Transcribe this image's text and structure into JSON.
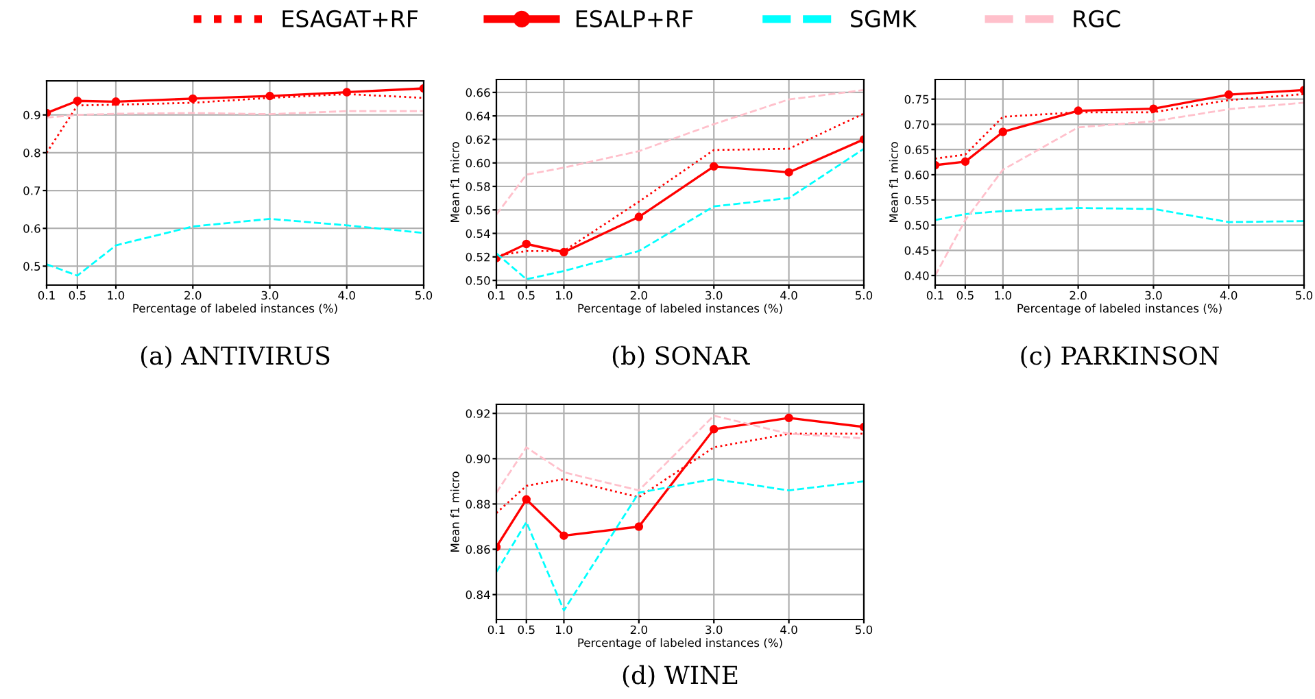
{
  "chart_data": [
    {
      "type": "line",
      "title": "(a) ANTIVIRUS",
      "xlabel": "Percentage of labeled instances (%)",
      "x": [
        0.1,
        0.5,
        1.0,
        2.0,
        3.0,
        4.0,
        5.0
      ],
      "xlim": [
        0.1,
        5.0
      ],
      "xticks": [
        {
          "value": 0.1,
          "label": "0.1"
        },
        {
          "value": 0.5,
          "label": "0.5"
        },
        {
          "value": 1.0,
          "label": "1.0"
        },
        {
          "value": 2.0,
          "label": "2.0"
        },
        {
          "value": 3.0,
          "label": "3.0"
        },
        {
          "value": 4.0,
          "label": "4.0"
        },
        {
          "value": 5.0,
          "label": "5.0"
        }
      ],
      "ylim": [
        0.45,
        0.99
      ],
      "yticks": [
        0.5,
        0.6,
        0.7,
        0.8,
        0.9
      ],
      "grid": true,
      "legend": "top",
      "series": [
        {
          "name": "ESAGAT+RF",
          "color": "#ff0000",
          "line_style": "dotted",
          "marker": "none",
          "values": [
            0.8,
            0.925,
            0.927,
            0.932,
            0.945,
            0.955,
            0.945
          ]
        },
        {
          "name": "ESALP+RF",
          "color": "#ff0000",
          "line_style": "solid",
          "marker": "circle",
          "values": [
            0.905,
            0.937,
            0.935,
            0.943,
            0.95,
            0.96,
            0.97
          ]
        },
        {
          "name": "SGMK",
          "color": "#00ffff",
          "line_style": "dashed",
          "marker": "none",
          "values": [
            0.505,
            0.475,
            0.555,
            0.605,
            0.625,
            0.608,
            0.588
          ]
        },
        {
          "name": "RGC",
          "color": "#ffc0cb",
          "line_style": "dashed",
          "marker": "none",
          "values": [
            0.893,
            0.9,
            0.903,
            0.905,
            0.902,
            0.91,
            0.91
          ]
        }
      ]
    },
    {
      "type": "line",
      "title": "(b) SONAR",
      "xlabel": "Percentage of labeled instances (%)",
      "ylabel": "Mean f1 micro",
      "x": [
        0.1,
        0.5,
        1.0,
        2.0,
        3.0,
        4.0,
        5.0
      ],
      "xlim": [
        0.1,
        5.0
      ],
      "xticks": [
        {
          "value": 0.1,
          "label": "0.1"
        },
        {
          "value": 0.5,
          "label": "0.5"
        },
        {
          "value": 1.0,
          "label": "1.0"
        },
        {
          "value": 2.0,
          "label": "2.0"
        },
        {
          "value": 3.0,
          "label": "3.0"
        },
        {
          "value": 4.0,
          "label": "4.0"
        },
        {
          "value": 5.0,
          "label": "5.0"
        }
      ],
      "ylim": [
        0.496,
        0.671
      ],
      "yticks": [
        {
          "value": 0.5,
          "label": "0.50"
        },
        0.52,
        0.54,
        0.56,
        0.58,
        {
          "value": 0.6,
          "label": "0.60"
        },
        0.62,
        0.64,
        0.66
      ],
      "grid": true,
      "series": [
        {
          "color": "#ff0000",
          "line_style": "dotted",
          "marker": "none",
          "values": [
            0.521,
            0.525,
            0.525,
            0.567,
            0.611,
            0.612,
            0.642
          ]
        },
        {
          "color": "#ff0000",
          "line_style": "solid",
          "marker": "circle",
          "values": [
            0.519,
            0.531,
            0.524,
            0.554,
            0.597,
            0.592,
            0.62
          ]
        },
        {
          "color": "#00ffff",
          "line_style": "dashed",
          "marker": "none",
          "values": [
            0.523,
            0.501,
            0.508,
            0.525,
            0.563,
            0.57,
            0.612
          ]
        },
        {
          "color": "#ffc0cb",
          "line_style": "dashed",
          "marker": "none",
          "values": [
            0.556,
            0.59,
            0.596,
            0.61,
            0.633,
            0.654,
            0.662
          ]
        }
      ]
    },
    {
      "type": "line",
      "title": "(c) PARKINSON",
      "xlabel": "Percentage of labeled instances (%)",
      "ylabel": "Mean f1 micro",
      "x": [
        0.1,
        0.5,
        1.0,
        2.0,
        3.0,
        4.0,
        5.0
      ],
      "xlim": [
        0.1,
        5.0
      ],
      "xticks": [
        {
          "value": 0.1,
          "label": "0.1"
        },
        {
          "value": 0.5,
          "label": "0.5"
        },
        {
          "value": 1.0,
          "label": "1.0"
        },
        {
          "value": 2.0,
          "label": "2.0"
        },
        {
          "value": 3.0,
          "label": "3.0"
        },
        {
          "value": 4.0,
          "label": "4.0"
        },
        {
          "value": 5.0,
          "label": "5.0"
        }
      ],
      "ylim": [
        0.381,
        0.789
      ],
      "yticks": [
        {
          "value": 0.4,
          "label": "0.40"
        },
        0.45,
        {
          "value": 0.5,
          "label": "0.50"
        },
        0.55,
        {
          "value": 0.6,
          "label": "0.60"
        },
        0.65,
        {
          "value": 0.7,
          "label": "0.70"
        },
        0.75
      ],
      "grid": true,
      "series": [
        {
          "color": "#ff0000",
          "line_style": "dotted",
          "marker": "none",
          "values": [
            0.632,
            0.64,
            0.715,
            0.724,
            0.724,
            0.748,
            0.76
          ]
        },
        {
          "color": "#ff0000",
          "line_style": "solid",
          "marker": "circle",
          "values": [
            0.619,
            0.626,
            0.685,
            0.727,
            0.731,
            0.759,
            0.768
          ]
        },
        {
          "color": "#00ffff",
          "line_style": "dashed",
          "marker": "none",
          "values": [
            0.51,
            0.522,
            0.528,
            0.534,
            0.532,
            0.506,
            0.508
          ]
        },
        {
          "color": "#ffc0cb",
          "line_style": "dashed",
          "marker": "none",
          "values": [
            0.4,
            0.51,
            0.61,
            0.694,
            0.706,
            0.73,
            0.743
          ]
        }
      ]
    },
    {
      "type": "line",
      "title": "(d) WINE",
      "xlabel": "Percentage of labeled instances (%)",
      "ylabel": "Mean f1 micro",
      "x": [
        0.1,
        0.5,
        1.0,
        2.0,
        3.0,
        4.0,
        5.0
      ],
      "xlim": [
        0.1,
        5.0
      ],
      "xticks": [
        {
          "value": 0.1,
          "label": "0.1"
        },
        {
          "value": 0.5,
          "label": "0.5"
        },
        {
          "value": 1.0,
          "label": "1.0"
        },
        {
          "value": 2.0,
          "label": "2.0"
        },
        {
          "value": 3.0,
          "label": "3.0"
        },
        {
          "value": 4.0,
          "label": "4.0"
        },
        {
          "value": 5.0,
          "label": "5.0"
        }
      ],
      "ylim": [
        0.829,
        0.924
      ],
      "yticks": [
        0.84,
        0.86,
        0.88,
        {
          "value": 0.9,
          "label": "0.90"
        },
        0.92
      ],
      "grid": true,
      "series": [
        {
          "color": "#ff0000",
          "line_style": "dotted",
          "marker": "none",
          "values": [
            0.876,
            0.888,
            0.891,
            0.883,
            0.905,
            0.911,
            0.911
          ]
        },
        {
          "color": "#ff0000",
          "line_style": "solid",
          "marker": "circle",
          "values": [
            0.861,
            0.882,
            0.866,
            0.87,
            0.913,
            0.918,
            0.914
          ]
        },
        {
          "color": "#00ffff",
          "line_style": "dashed",
          "marker": "none",
          "values": [
            0.85,
            0.872,
            0.833,
            0.885,
            0.891,
            0.886,
            0.89
          ]
        },
        {
          "color": "#ffc0cb",
          "line_style": "dashed",
          "marker": "none",
          "values": [
            0.885,
            0.905,
            0.894,
            0.886,
            0.919,
            0.911,
            0.909
          ]
        }
      ]
    }
  ]
}
